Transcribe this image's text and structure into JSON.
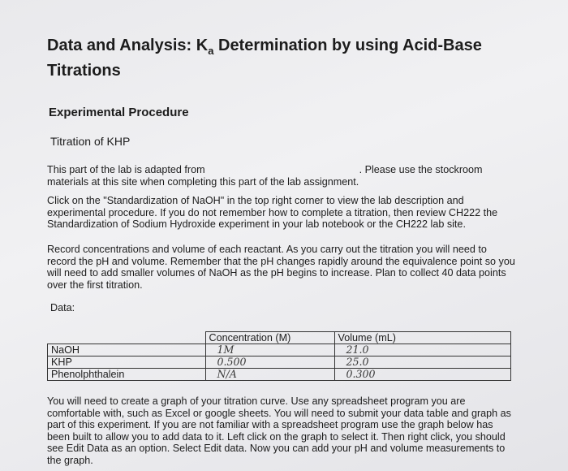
{
  "header": {
    "title_start": "Data and Analysis: K",
    "title_subscript": "a",
    "title_end": " Determination by using Acid-Base Titrations"
  },
  "section": {
    "heading": "Experimental Procedure",
    "subheading": "Titration of KHP"
  },
  "paragraphs": [
    {
      "text": "This part of the lab is adapted from",
      "text_after_gap": ". Please use the stockroom materials at this site when completing this part of the lab assignment."
    },
    {
      "text": "Click on the \"Standardization of NaOH\" in the top right corner to view the lab description and experimental procedure. If you do not remember how to complete a titration, then review CH222 the Standardization of Sodium Hydroxide experiment in your lab notebook or the CH222 lab site."
    },
    {
      "text": "Record concentrations and volume of each reactant. As you carry out the titration you will need to record the pH and volume. Remember that the pH changes rapidly around the equivalence point so you will need to add smaller volumes of NaOH as the pH begins to increase. Plan to collect 40 data points over the first titration."
    }
  ],
  "data_label": "Data:",
  "table": {
    "columns": [
      "Concentration (M)",
      "Volume (mL)"
    ],
    "rows": [
      [
        "NaOH",
        "1M",
        "21.0"
      ],
      [
        "KHP",
        "0.500",
        "25.0"
      ],
      [
        "Phenolphthalein",
        "N/A",
        "0.300"
      ]
    ]
  },
  "closing": "You will need to create a graph of your titration curve. Use any spreadsheet program you are comfortable with, such as Excel or google sheets. You will need to submit your data table and graph as part of this experiment. If you are not familiar with a spreadsheet program use the graph below has been built to allow you to add data to it. Left click on the graph to select it. Then right click, you should see Edit Data as an option. Select Edit data. Now you can add your pH and volume measurements to the graph."
}
